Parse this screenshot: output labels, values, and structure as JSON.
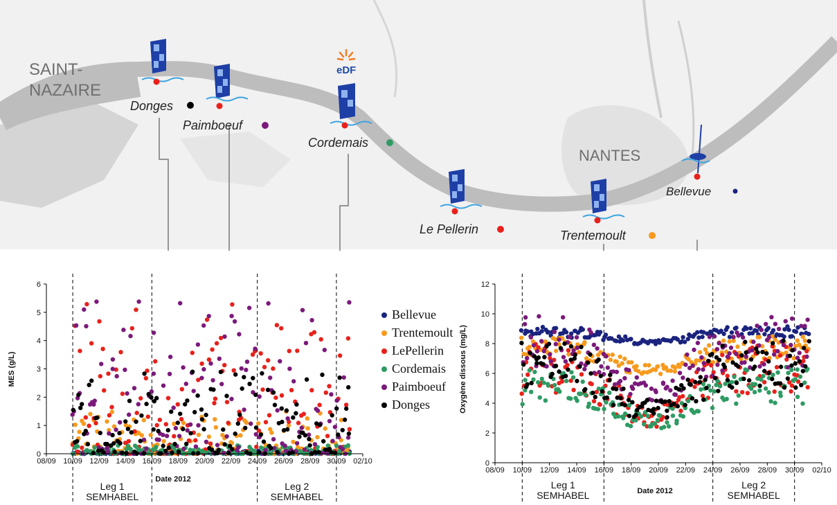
{
  "map": {
    "cities": [
      "SAINT-",
      "NAZAIRE",
      "NANTES"
    ],
    "edf_logo": "eDF",
    "stations": [
      {
        "name": "Donges",
        "color": "#000000"
      },
      {
        "name": "Paimboeuf",
        "color": "#7b1a7b"
      },
      {
        "name": "Cordemais",
        "color": "#2e9b63"
      },
      {
        "name": "Le Pellerin",
        "color": "#e8211b"
      },
      {
        "name": "Trentemoult",
        "color": "#f79a1e"
      },
      {
        "name": "Bellevue",
        "color": "#1a237e"
      }
    ]
  },
  "legend": [
    {
      "label": "Bellevue",
      "color": "#1a237e"
    },
    {
      "label": "Trentemoult",
      "color": "#f79a1e"
    },
    {
      "label": "LePellerin",
      "color": "#e8211b"
    },
    {
      "label": "Cordemais",
      "color": "#2e9b63"
    },
    {
      "label": "Paimboeuf",
      "color": "#7b1a7b"
    },
    {
      "label": "Donges",
      "color": "#000000"
    }
  ],
  "chart_data": [
    {
      "type": "scatter",
      "xlabel": "Date 2012",
      "ylabel": "MES (g/L)",
      "x_ticks": [
        "08/09",
        "10/09",
        "12/09",
        "14/09",
        "16/09",
        "18/09",
        "20/09",
        "22/09",
        "24/09",
        "26/09",
        "28/09",
        "30/09",
        "02/10"
      ],
      "ylim": [
        0,
        6
      ],
      "y_ticks": [
        "0",
        "1",
        "2",
        "3",
        "4",
        "5",
        "6"
      ],
      "x_range": [
        "2012-09-08",
        "2012-10-02"
      ],
      "data_x_range": [
        "2012-09-10",
        "2012-10-01"
      ],
      "periods": [
        {
          "start": "2012-09-10",
          "end": "2012-09-16",
          "label": [
            "Leg 1",
            "SEMHABEL"
          ]
        },
        {
          "start": "2012-09-24",
          "end": "2012-09-30",
          "label": [
            "Leg 2",
            "SEMHABEL"
          ]
        }
      ],
      "series": [
        {
          "name": "Bellevue",
          "typical_range": [
            0,
            0.1
          ]
        },
        {
          "name": "Trentemoult",
          "typical_range": [
            0,
            1.5
          ]
        },
        {
          "name": "LePellerin",
          "typical_range": [
            0,
            5.3
          ]
        },
        {
          "name": "Cordemais",
          "typical_range": [
            0,
            0.3
          ]
        },
        {
          "name": "Paimboeuf",
          "typical_range": [
            0,
            5.4
          ]
        },
        {
          "name": "Donges",
          "typical_range": [
            0,
            2.9
          ]
        }
      ]
    },
    {
      "type": "scatter",
      "xlabel": "Date 2012",
      "ylabel": "Oxygène dissous (mg/L)",
      "x_ticks": [
        "08/09",
        "10/09",
        "12/09",
        "14/09",
        "16/09",
        "18/09",
        "20/09",
        "22/09",
        "24/09",
        "26/09",
        "28/09",
        "30/09",
        "02/10"
      ],
      "ylim": [
        0,
        12
      ],
      "y_ticks": [
        "0",
        "2",
        "4",
        "6",
        "8",
        "10",
        "12"
      ],
      "x_range": [
        "2012-09-08",
        "2012-10-02"
      ],
      "data_x_range": [
        "2012-09-10",
        "2012-10-01"
      ],
      "periods": [
        {
          "start": "2012-09-10",
          "end": "2012-09-16",
          "label": [
            "Leg 1",
            "SEMHABEL"
          ]
        },
        {
          "start": "2012-09-24",
          "end": "2012-09-30",
          "label": [
            "Leg 2",
            "SEMHABEL"
          ]
        }
      ],
      "series": [
        {
          "name": "Bellevue",
          "typical_range": [
            7.5,
            9.2
          ]
        },
        {
          "name": "Trentemoult",
          "typical_range": [
            5,
            8.5
          ]
        },
        {
          "name": "LePellerin",
          "typical_range": [
            0.5,
            8
          ]
        },
        {
          "name": "Cordemais",
          "typical_range": [
            0.8,
            6.5
          ]
        },
        {
          "name": "Paimboeuf",
          "typical_range": [
            2,
            10
          ]
        },
        {
          "name": "Donges",
          "typical_range": [
            0.8,
            8.5
          ]
        }
      ]
    }
  ]
}
